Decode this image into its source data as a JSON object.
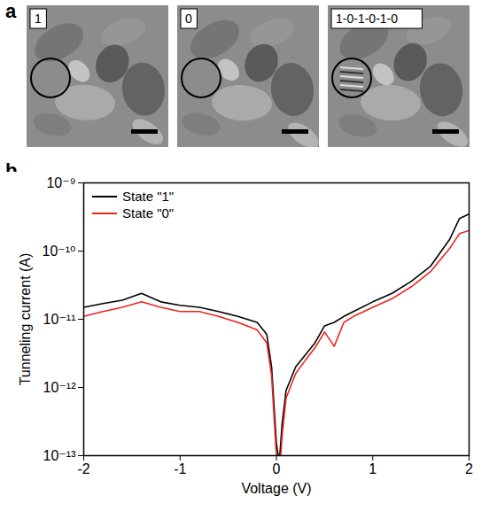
{
  "figure": {
    "panel_letters": [
      "a",
      "b"
    ],
    "images": [
      {
        "label": "1"
      },
      {
        "label": "0"
      },
      {
        "label": "1-0-1-0-1-0"
      }
    ]
  },
  "chart_data": {
    "type": "line",
    "xlabel": "Voltage (V)",
    "ylabel": "Tunneling current (A)",
    "log": "y",
    "legend": "upper left",
    "grid": false,
    "xlim": [
      -2,
      2
    ],
    "xticks": [
      -2,
      -1,
      0,
      1,
      2
    ],
    "ylim": [
      1e-13,
      1e-09
    ],
    "yticks": [
      {
        "value": 1e-13,
        "label": "10⁻¹³"
      },
      {
        "value": 1e-12,
        "label": "10⁻¹²"
      },
      {
        "value": 1e-11,
        "label": "10⁻¹¹"
      },
      {
        "value": 1e-10,
        "label": "10⁻¹⁰"
      },
      {
        "value": 1e-09,
        "label": "10⁻⁹"
      }
    ],
    "x": [
      -2.0,
      -1.8,
      -1.6,
      -1.4,
      -1.2,
      -1.0,
      -0.8,
      -0.6,
      -0.4,
      -0.2,
      -0.1,
      -0.05,
      0.0,
      0.03,
      0.06,
      0.1,
      0.2,
      0.3,
      0.4,
      0.5,
      0.6,
      0.7,
      0.8,
      1.0,
      1.2,
      1.4,
      1.6,
      1.8,
      1.9,
      2.0
    ],
    "series": [
      {
        "name": "State \"1\"",
        "color": "#000000",
        "values": [
          1.5e-11,
          1.7e-11,
          1.9e-11,
          2.4e-11,
          1.8e-11,
          1.6e-11,
          1.5e-11,
          1.3e-11,
          1.1e-11,
          9e-12,
          6e-12,
          2e-12,
          1.5e-13,
          8e-14,
          3e-13,
          9e-13,
          2e-12,
          3e-12,
          4.5e-12,
          8e-12,
          9e-12,
          1.1e-11,
          1.3e-11,
          1.8e-11,
          2.4e-11,
          3.6e-11,
          6e-11,
          1.5e-10,
          3e-10,
          3.5e-10
        ]
      },
      {
        "name": "State \"0\"",
        "color": "#e8261e",
        "values": [
          1.1e-11,
          1.3e-11,
          1.5e-11,
          1.8e-11,
          1.5e-11,
          1.3e-11,
          1.3e-11,
          1.1e-11,
          9e-12,
          7e-12,
          4.5e-12,
          1.5e-12,
          1e-13,
          5e-14,
          2e-13,
          7e-13,
          1.6e-12,
          2.5e-12,
          3.8e-12,
          6.5e-12,
          4e-12,
          9e-12,
          1.1e-11,
          1.5e-11,
          2e-11,
          3e-11,
          5e-11,
          1.1e-10,
          1.8e-10,
          2e-10
        ]
      }
    ]
  }
}
